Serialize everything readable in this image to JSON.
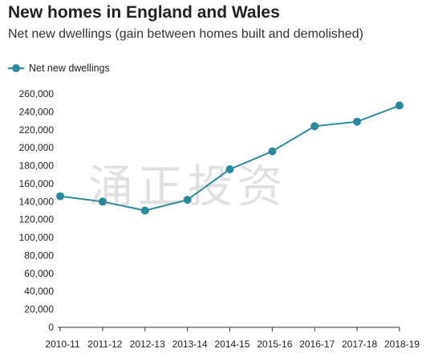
{
  "chart_data": {
    "type": "line",
    "title": "New homes in England and Wales",
    "subtitle": "Net new dwellings (gain between homes built and demolished)",
    "categories": [
      "2010-11",
      "2011-12",
      "2012-13",
      "2013-14",
      "2014-15",
      "2015-16",
      "2016-17",
      "2017-18",
      "2018-19"
    ],
    "series": [
      {
        "name": "Net new dwellings",
        "values": [
          146000,
          140000,
          130000,
          142000,
          176000,
          196000,
          224000,
          229000,
          247000
        ]
      }
    ],
    "ylim": [
      0,
      260000
    ],
    "yticks": [
      "0",
      "20,000",
      "40,000",
      "60,000",
      "80,000",
      "100,000",
      "120,000",
      "140,000",
      "160,000",
      "180,000",
      "200,000",
      "220,000",
      "240,000",
      "260,000"
    ],
    "ytick_values": [
      0,
      20000,
      40000,
      60000,
      80000,
      100000,
      120000,
      140000,
      160000,
      180000,
      200000,
      220000,
      240000,
      260000
    ],
    "grid": false,
    "legend": "top-left",
    "series_color": "#2a8a9d",
    "axis_color": "#333333"
  },
  "watermark": "涌正投资"
}
